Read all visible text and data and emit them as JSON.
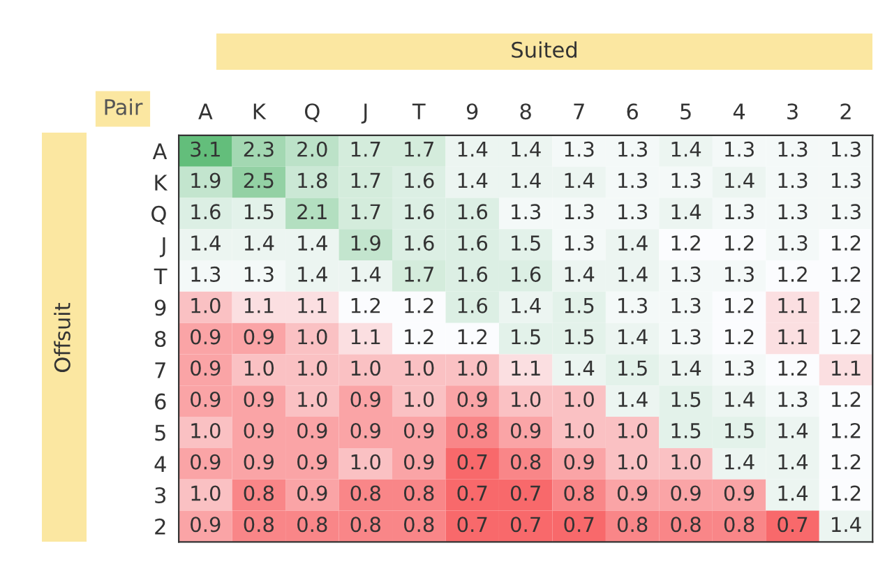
{
  "chart_data": {
    "type": "heatmap",
    "xlabel": "Suited",
    "ylabel": "Offsuit",
    "annotations": [
      "Pair"
    ],
    "cell_labels": [
      [
        "3.1",
        "2.3",
        "2.0",
        "1.7",
        "1.7",
        "1.4",
        "1.4",
        "1.3",
        "1.3",
        "1.4",
        "1.3",
        "1.3",
        "1.3"
      ],
      [
        "1.9",
        "2.5",
        "1.8",
        "1.7",
        "1.6",
        "1.4",
        "1.4",
        "1.4",
        "1.3",
        "1.3",
        "1.4",
        "1.3",
        "1.3"
      ],
      [
        "1.6",
        "1.5",
        "2.1",
        "1.7",
        "1.6",
        "1.6",
        "1.3",
        "1.3",
        "1.3",
        "1.4",
        "1.3",
        "1.3",
        "1.3"
      ],
      [
        "1.4",
        "1.4",
        "1.4",
        "1.9",
        "1.6",
        "1.6",
        "1.5",
        "1.3",
        "1.4",
        "1.2",
        "1.2",
        "1.3",
        "1.2"
      ],
      [
        "1.3",
        "1.3",
        "1.4",
        "1.4",
        "1.7",
        "1.6",
        "1.6",
        "1.4",
        "1.4",
        "1.3",
        "1.3",
        "1.2",
        "1.2"
      ],
      [
        "1.0",
        "1.1",
        "1.1",
        "1.2",
        "1.2",
        "1.6",
        "1.4",
        "1.5",
        "1.3",
        "1.3",
        "1.2",
        "1.1",
        "1.2"
      ],
      [
        "0.9",
        "0.9",
        "1.0",
        "1.1",
        "1.2",
        "1.2",
        "1.5",
        "1.5",
        "1.4",
        "1.3",
        "1.2",
        "1.1",
        "1.2"
      ],
      [
        "0.9",
        "1.0",
        "1.0",
        "1.0",
        "1.0",
        "1.0",
        "1.1",
        "1.4",
        "1.5",
        "1.4",
        "1.3",
        "1.2",
        "1.1"
      ],
      [
        "0.9",
        "0.9",
        "1.0",
        "0.9",
        "1.0",
        "0.9",
        "1.0",
        "1.0",
        "1.4",
        "1.5",
        "1.4",
        "1.3",
        "1.2"
      ],
      [
        "1.0",
        "0.9",
        "0.9",
        "0.9",
        "0.9",
        "0.8",
        "0.9",
        "1.0",
        "1.0",
        "1.5",
        "1.5",
        "1.4",
        "1.2"
      ],
      [
        "0.9",
        "0.9",
        "0.9",
        "1.0",
        "0.9",
        "0.7",
        "0.8",
        "0.9",
        "1.0",
        "1.0",
        "1.4",
        "1.4",
        "1.2"
      ],
      [
        "1.0",
        "0.8",
        "0.9",
        "0.8",
        "0.8",
        "0.7",
        "0.7",
        "0.8",
        "0.9",
        "0.9",
        "0.9",
        "1.4",
        "1.2"
      ],
      [
        "0.9",
        "0.8",
        "0.8",
        "0.8",
        "0.8",
        "0.7",
        "0.7",
        "0.7",
        "0.8",
        "0.8",
        "0.8",
        "0.7",
        "1.4"
      ]
    ],
    "categories": [
      "A",
      "K",
      "Q",
      "J",
      "T",
      "9",
      "8",
      "7",
      "6",
      "5",
      "4",
      "3",
      "2"
    ],
    "y_categories": [
      "A",
      "K",
      "Q",
      "J",
      "T",
      "9",
      "8",
      "7",
      "6",
      "5",
      "4",
      "3",
      "2"
    ],
    "cells": [
      [
        3.1,
        2.3,
        2.0,
        1.7,
        1.7,
        1.4,
        1.4,
        1.3,
        1.3,
        1.4,
        1.3,
        1.3,
        1.3
      ],
      [
        1.9,
        2.5,
        1.8,
        1.7,
        1.6,
        1.4,
        1.4,
        1.4,
        1.3,
        1.3,
        1.4,
        1.3,
        1.3
      ],
      [
        1.6,
        1.5,
        2.1,
        1.7,
        1.6,
        1.6,
        1.3,
        1.3,
        1.3,
        1.4,
        1.3,
        1.3,
        1.3
      ],
      [
        1.4,
        1.4,
        1.4,
        1.9,
        1.6,
        1.6,
        1.5,
        1.3,
        1.4,
        1.2,
        1.2,
        1.3,
        1.2
      ],
      [
        1.3,
        1.3,
        1.4,
        1.4,
        1.7,
        1.6,
        1.6,
        1.4,
        1.4,
        1.3,
        1.3,
        1.2,
        1.2
      ],
      [
        1.0,
        1.1,
        1.1,
        1.2,
        1.2,
        1.6,
        1.4,
        1.5,
        1.3,
        1.3,
        1.2,
        1.1,
        1.2
      ],
      [
        0.9,
        0.9,
        1.0,
        1.1,
        1.2,
        1.2,
        1.5,
        1.5,
        1.4,
        1.3,
        1.2,
        1.1,
        1.2
      ],
      [
        0.9,
        1.0,
        1.0,
        1.0,
        1.0,
        1.0,
        1.1,
        1.4,
        1.5,
        1.4,
        1.3,
        1.2,
        1.1
      ],
      [
        0.9,
        0.9,
        1.0,
        0.9,
        1.0,
        0.9,
        1.0,
        1.0,
        1.4,
        1.5,
        1.4,
        1.3,
        1.2
      ],
      [
        1.0,
        0.9,
        0.9,
        0.9,
        0.9,
        0.8,
        0.9,
        1.0,
        1.0,
        1.5,
        1.5,
        1.4,
        1.2
      ],
      [
        0.9,
        0.9,
        0.9,
        1.0,
        0.9,
        0.7,
        0.8,
        0.9,
        1.0,
        1.0,
        1.4,
        1.4,
        1.2
      ],
      [
        1.0,
        0.8,
        0.9,
        0.8,
        0.8,
        0.7,
        0.7,
        0.8,
        0.9,
        0.9,
        0.9,
        1.4,
        1.2
      ],
      [
        0.9,
        0.8,
        0.8,
        0.8,
        0.8,
        0.7,
        0.7,
        0.7,
        0.8,
        0.8,
        0.8,
        0.7,
        1.4
      ]
    ]
  }
}
